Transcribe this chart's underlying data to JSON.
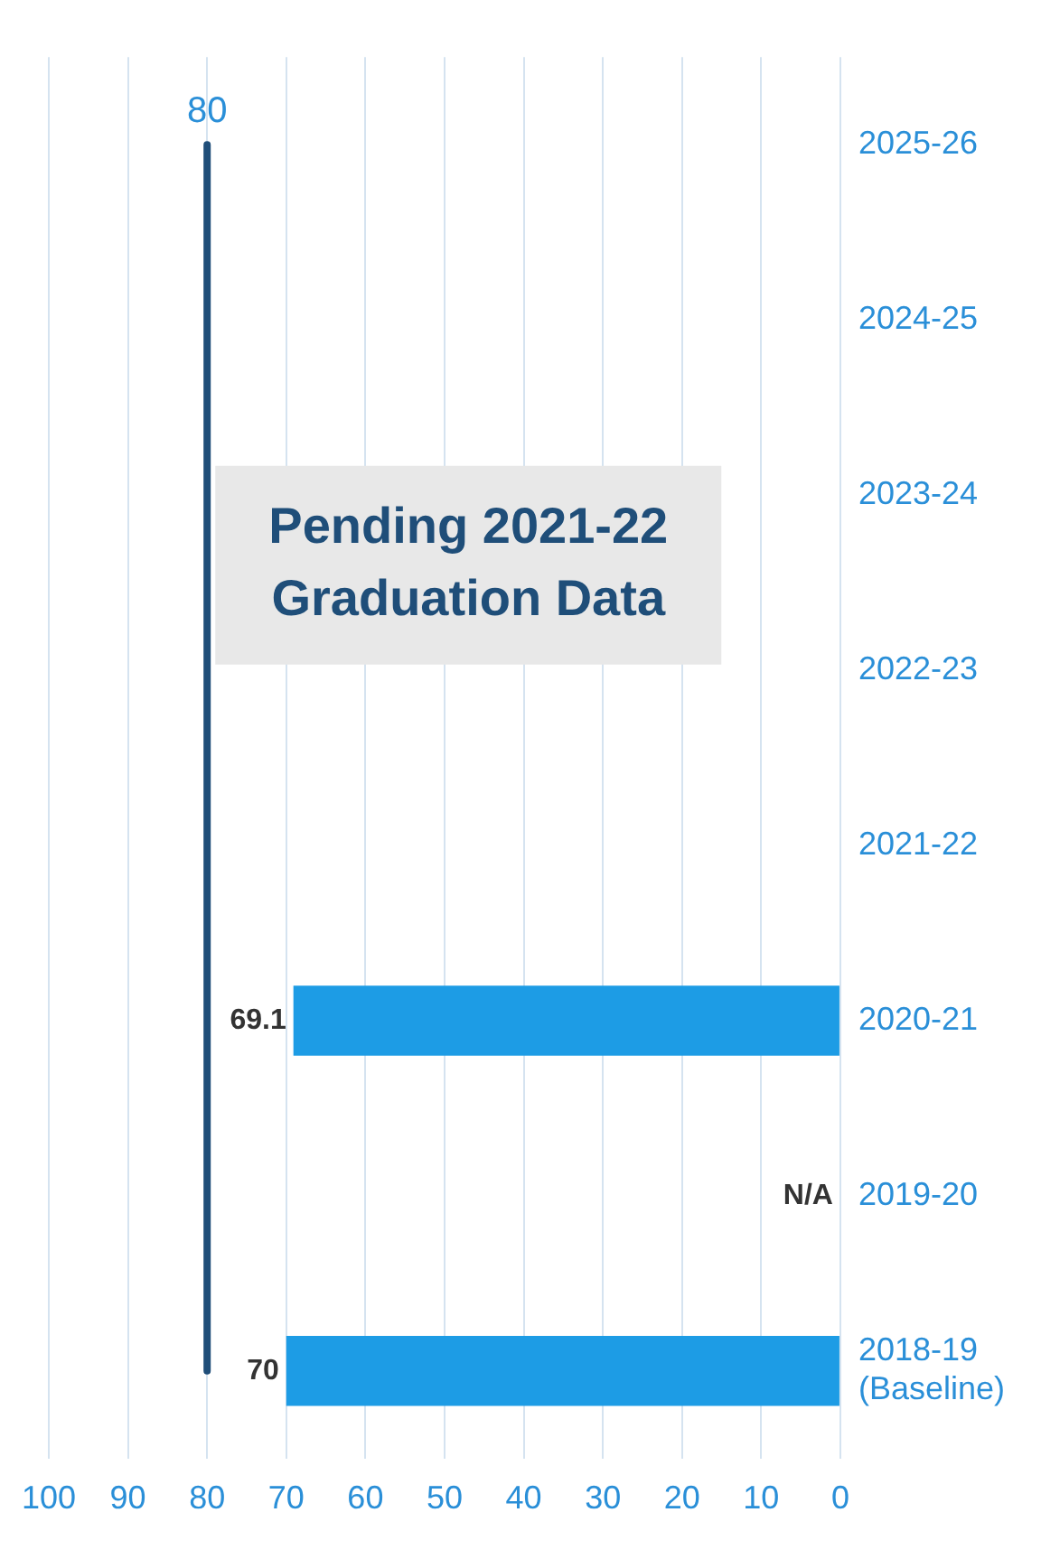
{
  "chart_data": {
    "type": "bar",
    "orientation": "horizontal",
    "categories": [
      "2025-26",
      "2024-25",
      "2023-24",
      "2022-23",
      "2021-22",
      "2020-21",
      "2019-20",
      "2018-19 (Baseline)"
    ],
    "series": [
      {
        "color": "#1d9ce5",
        "values": [
          null,
          null,
          null,
          null,
          null,
          69.1,
          null,
          70
        ],
        "value_labels": [
          null,
          null,
          null,
          null,
          null,
          "69.1",
          "N/A",
          "70"
        ]
      },
      {
        "type": "line",
        "color": "#1f4e79",
        "values": [
          80,
          80,
          80,
          80,
          80,
          80,
          80,
          80
        ],
        "value_labels": [
          "80",
          null,
          null,
          null,
          null,
          null,
          null,
          null
        ]
      }
    ],
    "xlim": [
      100,
      0
    ],
    "xticks": [
      100,
      90,
      80,
      70,
      60,
      50,
      40,
      30,
      20,
      10,
      0
    ],
    "grid": "x",
    "legend": false,
    "annotations": [
      "Pending 2021-22 Graduation Data"
    ]
  }
}
